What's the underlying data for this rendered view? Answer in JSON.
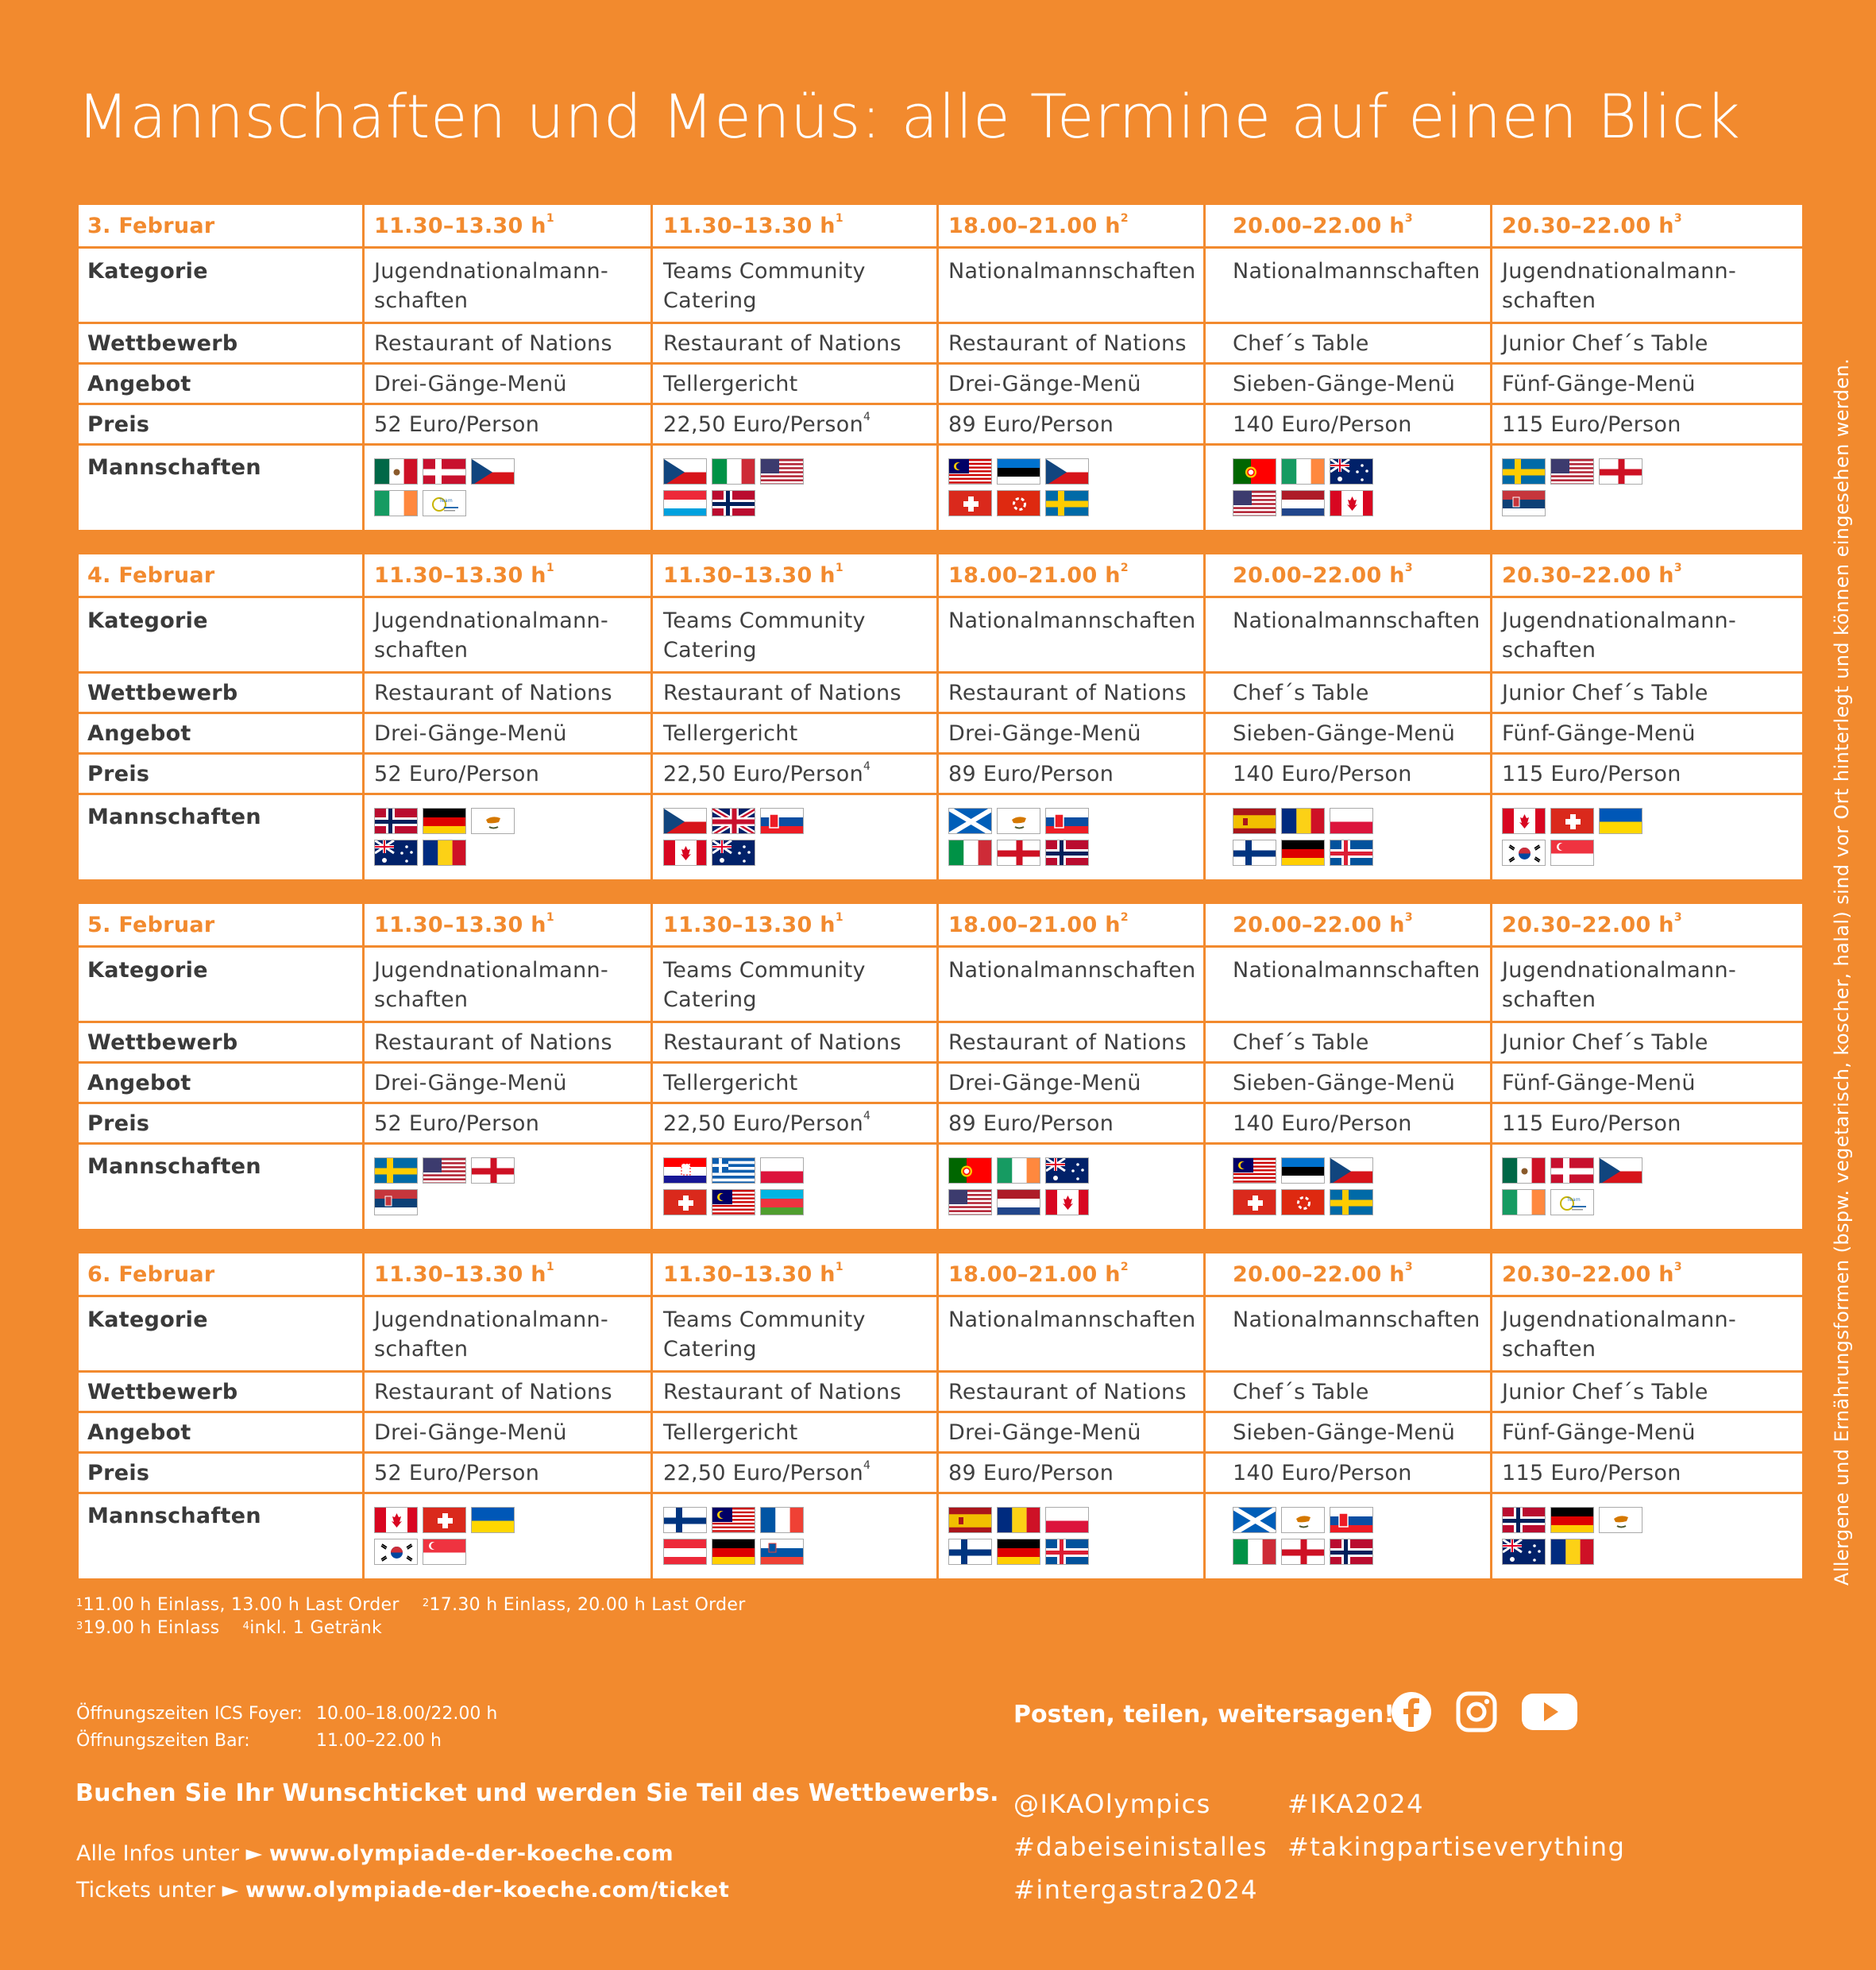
{
  "title": "Mannschaften und Menüs: alle Termine auf einen Blick",
  "row_labels": {
    "kategorie": "Kategorie",
    "wettbewerb": "Wettbewerb",
    "angebot": "Angebot",
    "preis": "Preis",
    "mannschaften": "Mannschaften"
  },
  "slots": [
    {
      "time": "11.30–13.30 h",
      "note": "1",
      "kategorie": "Jugendnationalmann-schaften",
      "wettbewerb": "Restaurant of Nations",
      "angebot": "Drei-Gänge-Menü",
      "preis": "52 Euro/Person",
      "preis_note": ""
    },
    {
      "time": "11.30–13.30 h",
      "note": "1",
      "kategorie": "Teams Community Catering",
      "wettbewerb": "Restaurant of Nations",
      "angebot": "Tellergericht",
      "preis": "22,50 Euro/Person",
      "preis_note": "4"
    },
    {
      "time": "18.00–21.00 h",
      "note": "2",
      "kategorie": "Nationalmannschaften",
      "wettbewerb": "Restaurant of Nations",
      "angebot": "Drei-Gänge-Menü",
      "preis": "89 Euro/Person",
      "preis_note": ""
    },
    {
      "time": "20.00–22.00 h",
      "note": "3",
      "kategorie": "Nationalmannschaften",
      "wettbewerb": "Chef´s Table",
      "angebot": "Sieben-Gänge-Menü",
      "preis": "140 Euro/Person",
      "preis_note": ""
    },
    {
      "time": "20.30–22.00 h",
      "note": "3",
      "kategorie": "Jugendnationalmann-schaften",
      "wettbewerb": "Junior Chef´s Table",
      "angebot": "Fünf-Gänge-Menü",
      "preis": "115 Euro/Person",
      "preis_note": ""
    }
  ],
  "days": [
    {
      "date": "3. Februar",
      "teams": [
        [
          "flag-mexico",
          "flag-denmark",
          "flag-czech",
          "flag-ireland",
          "flag-team-logo"
        ],
        [
          "flag-czech",
          "flag-italy",
          "flag-usa",
          "flag-luxembourg",
          "flag-norway"
        ],
        [
          "flag-malaysia",
          "flag-estonia",
          "flag-czech",
          "flag-switzerland",
          "flag-hong-kong",
          "flag-sweden"
        ],
        [
          "flag-portugal",
          "flag-ireland",
          "flag-australia",
          "flag-usa",
          "flag-netherlands",
          "flag-canada"
        ],
        [
          "flag-sweden",
          "flag-usa",
          "flag-england",
          "flag-serbia"
        ]
      ]
    },
    {
      "date": "4. Februar",
      "teams": [
        [
          "flag-norway",
          "flag-germany",
          "flag-cyprus",
          "flag-australia",
          "flag-romania"
        ],
        [
          "flag-czech",
          "flag-uk",
          "flag-slovakia",
          "flag-canada",
          "flag-australia"
        ],
        [
          "flag-scotland",
          "flag-cyprus",
          "flag-slovakia",
          "flag-italy",
          "flag-england",
          "flag-norway"
        ],
        [
          "flag-spain",
          "flag-romania",
          "flag-poland",
          "flag-finland",
          "flag-germany",
          "flag-iceland"
        ],
        [
          "flag-canada",
          "flag-switzerland",
          "flag-ukraine",
          "flag-south-korea",
          "flag-singapore"
        ]
      ]
    },
    {
      "date": "5. Februar",
      "teams": [
        [
          "flag-sweden",
          "flag-usa",
          "flag-england",
          "flag-serbia"
        ],
        [
          "flag-croatia",
          "flag-greece",
          "flag-poland",
          "flag-switzerland",
          "flag-malaysia",
          "flag-azerbaijan"
        ],
        [
          "flag-portugal",
          "flag-ireland",
          "flag-australia",
          "flag-usa",
          "flag-netherlands",
          "flag-canada"
        ],
        [
          "flag-malaysia",
          "flag-estonia",
          "flag-czech",
          "flag-switzerland",
          "flag-hong-kong",
          "flag-sweden"
        ],
        [
          "flag-mexico",
          "flag-denmark",
          "flag-czech",
          "flag-ireland",
          "flag-team-logo"
        ]
      ]
    },
    {
      "date": "6. Februar",
      "teams": [
        [
          "flag-canada",
          "flag-switzerland",
          "flag-ukraine",
          "flag-south-korea",
          "flag-singapore"
        ],
        [
          "flag-finland",
          "flag-malaysia",
          "flag-france",
          "flag-austria",
          "flag-germany",
          "flag-slovenia"
        ],
        [
          "flag-spain",
          "flag-romania",
          "flag-poland",
          "flag-finland",
          "flag-germany",
          "flag-iceland"
        ],
        [
          "flag-scotland",
          "flag-cyprus",
          "flag-slovakia",
          "flag-italy",
          "flag-england",
          "flag-norway"
        ],
        [
          "flag-norway",
          "flag-germany",
          "flag-cyprus",
          "flag-australia",
          "flag-romania"
        ]
      ]
    }
  ],
  "footnotes": {
    "f1_mark": "1",
    "f1": "11.00 h Einlass, 13.00 h Last Order",
    "f2_mark": "2",
    "f2": "17.30 h Einlass, 20.00 h Last Order",
    "f3_mark": "3",
    "f3": "19.00 h Einlass",
    "f4_mark": "4",
    "f4": "inkl. 1 Getränk"
  },
  "side_note": "Allergene und Ernährungsformen (bspw. vegetarisch, koscher, halal) sind vor Ort hinterlegt und können eingesehen werden.",
  "hours": {
    "foyer_label": "Öffnungszeiten ICS Foyer:",
    "foyer_value": "10.00–18.00/22.00 h",
    "bar_label": "Öffnungszeiten Bar:",
    "bar_value": "11.00–22.00 h"
  },
  "book_text": "Buchen Sie Ihr Wunschticket und werden Sie Teil des Wettbewerbs.",
  "links": {
    "info_label": "Alle Infos unter",
    "info_url": "www.olympiade-der-koeche.com",
    "ticket_label": "Tickets unter",
    "ticket_url": "www.olympiade-der-koeche.com/ticket",
    "arrow": "►"
  },
  "social": {
    "share_text": "Posten, teilen, weitersagen!",
    "icons": [
      "facebook-icon",
      "instagram-icon",
      "youtube-icon"
    ],
    "tags": [
      "@IKAOlympics",
      "#IKA2024",
      "#dabeiseinistalles",
      "#takingpartiseverything",
      "#intergastra2024"
    ]
  },
  "colors": {
    "background": "#F28A2E",
    "table": "#FFFFFF",
    "accent": "#F28A2E",
    "text": "#404040"
  }
}
